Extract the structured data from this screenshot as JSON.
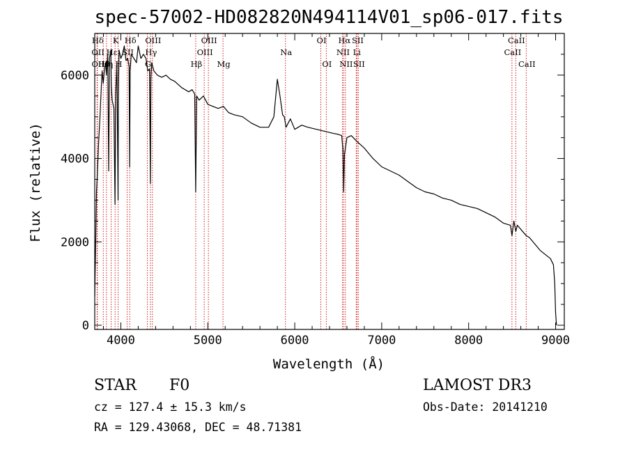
{
  "chart_data": {
    "type": "line",
    "title": "spec-57002-HD082820N494114V01_sp06-017.fits",
    "xlabel": "Wavelength (Å)",
    "ylabel": "Flux (relative)",
    "xlim": [
      3700,
      9100
    ],
    "ylim": [
      -100,
      7000
    ],
    "xticks": [
      {
        "value": 4000,
        "label": "4000"
      },
      {
        "value": 5000,
        "label": "5000"
      },
      {
        "value": 6000,
        "label": "6000"
      },
      {
        "value": 7000,
        "label": "7000"
      },
      {
        "value": 8000,
        "label": "8000"
      },
      {
        "value": 9000,
        "label": "9000"
      }
    ],
    "yticks": [
      {
        "value": 0,
        "label": "0"
      },
      {
        "value": 2000,
        "label": "2000"
      },
      {
        "value": 4000,
        "label": "4000"
      },
      {
        "value": 6000,
        "label": "6000"
      }
    ],
    "series": [
      {
        "name": "spectrum",
        "x": [
          3700,
          3705,
          3712,
          3720,
          3730,
          3745,
          3760,
          3775,
          3785,
          3798,
          3810,
          3825,
          3835,
          3850,
          3860,
          3870,
          3885,
          3890,
          3900,
          3920,
          3933,
          3940,
          3955,
          3968,
          3972,
          3980,
          4000,
          4020,
          4040,
          4060,
          4080,
          4095,
          4101,
          4107,
          4120,
          4150,
          4180,
          4200,
          4230,
          4260,
          4290,
          4310,
          4330,
          4340,
          4346,
          4355,
          4380,
          4420,
          4470,
          4520,
          4570,
          4620,
          4700,
          4780,
          4820,
          4850,
          4861,
          4872,
          4900,
          4950,
          5000,
          5060,
          5120,
          5180,
          5240,
          5300,
          5400,
          5500,
          5600,
          5700,
          5760,
          5800,
          5830,
          5860,
          5880,
          5900,
          5950,
          6000,
          6080,
          6150,
          6250,
          6350,
          6450,
          6500,
          6540,
          6555,
          6563,
          6572,
          6600,
          6650,
          6720,
          6800,
          6900,
          7000,
          7100,
          7200,
          7300,
          7400,
          7500,
          7600,
          7700,
          7800,
          7900,
          8000,
          8100,
          8200,
          8300,
          8400,
          8480,
          8498,
          8520,
          8542,
          8560,
          8600,
          8662,
          8700,
          8760,
          8820,
          8880,
          8940,
          8975,
          8990,
          9000,
          9010
        ],
        "y": [
          700,
          1300,
          2100,
          3200,
          3600,
          4400,
          5000,
          5700,
          6100,
          5800,
          6100,
          6300,
          6000,
          6500,
          3700,
          6400,
          6600,
          5800,
          5400,
          5200,
          2900,
          5500,
          6300,
          3000,
          5400,
          6600,
          6400,
          6500,
          6700,
          6350,
          6400,
          6200,
          3800,
          6100,
          6500,
          6400,
          6300,
          6700,
          6400,
          6500,
          6400,
          6100,
          6150,
          3400,
          5900,
          6300,
          6100,
          6000,
          5950,
          6000,
          5900,
          5850,
          5700,
          5600,
          5650,
          5550,
          3200,
          5500,
          5400,
          5500,
          5300,
          5250,
          5200,
          5250,
          5100,
          5050,
          5000,
          4850,
          4750,
          4750,
          5000,
          5900,
          5500,
          5050,
          5000,
          4750,
          4950,
          4700,
          4800,
          4750,
          4700,
          4650,
          4600,
          4580,
          4550,
          4200,
          3200,
          4100,
          4500,
          4550,
          4400,
          4250,
          4000,
          3800,
          3700,
          3600,
          3450,
          3300,
          3200,
          3150,
          3050,
          3000,
          2900,
          2850,
          2800,
          2700,
          2600,
          2450,
          2400,
          2150,
          2500,
          2250,
          2400,
          2300,
          2150,
          2100,
          1950,
          1800,
          1700,
          1600,
          1450,
          1000,
          300,
          0
        ]
      }
    ],
    "emission_lines": [
      {
        "name": "Hδ",
        "wavelength": 3727,
        "row": 1
      },
      {
        "name": "OII",
        "wavelength": 3729,
        "row": 2
      },
      {
        "name": "OII",
        "wavelength": 3730,
        "row": 3
      },
      {
        "name": "Hθ",
        "wavelength": 3798,
        "row": 3
      },
      {
        "name": "Hη",
        "wavelength": 3835,
        "row": 3
      },
      {
        "name": "Hε",
        "wavelength": 3889,
        "row": 2
      },
      {
        "name": "K",
        "wavelength": 3934,
        "row": 1
      },
      {
        "name": "H",
        "wavelength": 3969,
        "row": 3
      },
      {
        "name": "Hδ",
        "wavelength": 4102,
        "row": 1
      },
      {
        "name": "SII",
        "wavelength": 4072,
        "row": 2
      },
      {
        "name": "Hγ",
        "wavelength": 4340,
        "row": 2
      },
      {
        "name": "OIII",
        "wavelength": 4363,
        "row": 1
      },
      {
        "name": "G",
        "wavelength": 4305,
        "row": 3
      },
      {
        "name": "Hβ",
        "wavelength": 4861,
        "row": 4
      },
      {
        "name": "OIII",
        "wavelength": 4959,
        "row": 2
      },
      {
        "name": "OIII",
        "wavelength": 5007,
        "row": 1
      },
      {
        "name": "Mg",
        "wavelength": 5175,
        "row": 4
      },
      {
        "name": "Na",
        "wavelength": 5893,
        "row": 2
      },
      {
        "name": "OI",
        "wavelength": 6300,
        "row": 1
      },
      {
        "name": "OI",
        "wavelength": 6363,
        "row": 3
      },
      {
        "name": "NII",
        "wavelength": 6548,
        "row": 2
      },
      {
        "name": "Hα",
        "wavelength": 6563,
        "row": 1
      },
      {
        "name": "NII",
        "wavelength": 6583,
        "row": 3
      },
      {
        "name": "Li",
        "wavelength": 6707,
        "row": 2
      },
      {
        "name": "SII",
        "wavelength": 6716,
        "row": 1
      },
      {
        "name": "SII",
        "wavelength": 6731,
        "row": 3
      },
      {
        "name": "CaII",
        "wavelength": 8498,
        "row": 2
      },
      {
        "name": "CaII",
        "wavelength": 8542,
        "row": 1
      },
      {
        "name": "CaII",
        "wavelength": 8662,
        "row": 3
      }
    ]
  },
  "info": {
    "class": "STAR",
    "subclass": "F0",
    "survey": "LAMOST DR3",
    "cz": "cz = 127.4 ± 15.3 km/s",
    "obs_date": "Obs-Date: 20141210",
    "coords": "RA = 129.43068, DEC =  48.71381"
  },
  "colors": {
    "line_marker": "#cc0000",
    "spectrum": "#000000",
    "axes": "#000000"
  }
}
